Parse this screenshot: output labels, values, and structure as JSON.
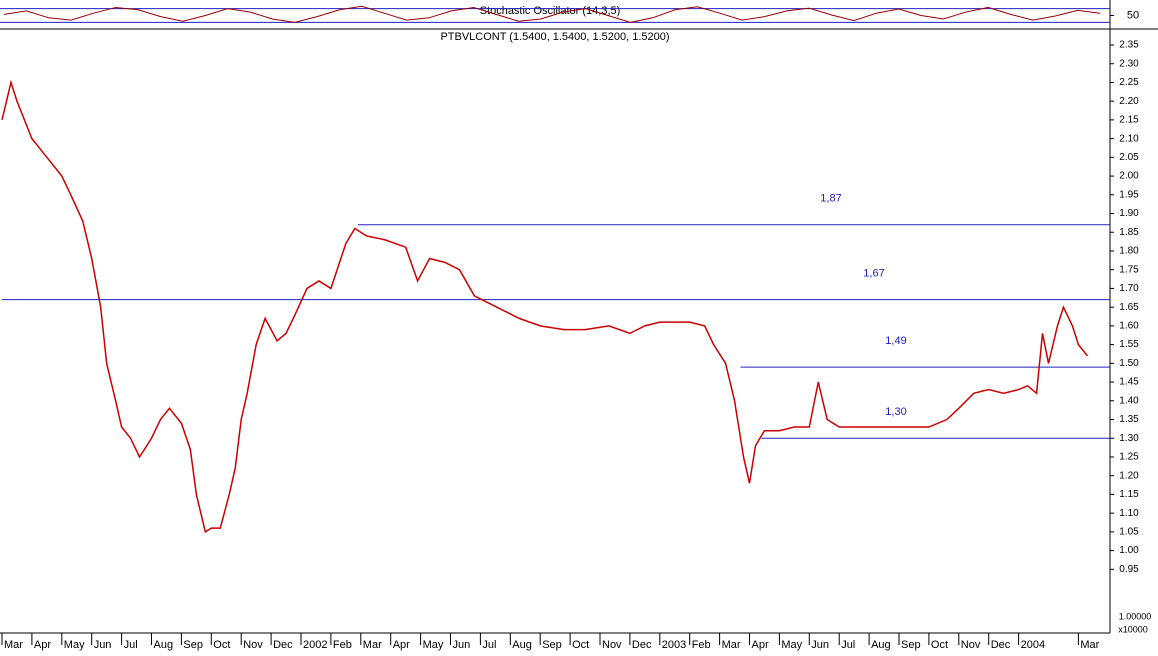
{
  "chart_data": [
    {
      "type": "line",
      "title": "Stochastic Oscillator (14,3,5)",
      "ylim": [
        0,
        100
      ],
      "yticks": [
        50
      ],
      "levels": [
        80,
        20
      ],
      "series": [
        {
          "name": "Stochastic",
          "color": "#990000",
          "values": [
            55,
            70,
            40,
            30,
            60,
            85,
            75,
            45,
            25,
            50,
            80,
            65,
            35,
            20,
            45,
            75,
            90,
            60,
            30,
            40,
            70,
            85,
            55,
            25,
            35,
            65,
            80,
            50,
            20,
            40,
            75,
            88,
            60,
            30,
            45,
            70,
            82,
            52,
            28,
            60,
            78,
            50,
            35,
            65,
            85,
            55,
            30,
            48,
            72,
            60
          ]
        }
      ]
    },
    {
      "type": "line",
      "title": "PTBVLCONT (1.5400, 1.5400, 1.5200, 1.5200)",
      "ylim": [
        0.78,
        2.39
      ],
      "yticks": [
        0.95,
        {
          "value": 1.0,
          "label": "1.00"
        },
        1.05,
        {
          "value": 1.1,
          "label": "1.10"
        },
        1.15,
        {
          "value": 1.2,
          "label": "1.20"
        },
        1.25,
        {
          "value": 1.3,
          "label": "1.30"
        },
        1.35,
        {
          "value": 1.4,
          "label": "1.40"
        },
        1.45,
        {
          "value": 1.5,
          "label": "1.50"
        },
        1.55,
        {
          "value": 1.6,
          "label": "1.60"
        },
        1.65,
        {
          "value": 1.7,
          "label": "1.70"
        },
        1.75,
        {
          "value": 1.8,
          "label": "1.80"
        },
        1.85,
        {
          "value": 1.9,
          "label": "1.90"
        },
        1.95,
        {
          "value": 2.0,
          "label": "2.00"
        },
        2.05,
        {
          "value": 2.1,
          "label": "2.10"
        },
        2.15,
        {
          "value": 2.2,
          "label": "2.20"
        },
        2.25,
        {
          "value": 2.3,
          "label": "2.30"
        },
        2.35
      ],
      "xlim": [
        0,
        37
      ],
      "xticks": [
        {
          "value": 0,
          "label": "Mar"
        },
        {
          "value": 1,
          "label": "Apr"
        },
        {
          "value": 2,
          "label": "May"
        },
        {
          "value": 3,
          "label": "Jun"
        },
        {
          "value": 4,
          "label": "Jul"
        },
        {
          "value": 5,
          "label": "Aug"
        },
        {
          "value": 6,
          "label": "Sep"
        },
        {
          "value": 7,
          "label": "Oct"
        },
        {
          "value": 8,
          "label": "Nov"
        },
        {
          "value": 9,
          "label": "Dec"
        },
        {
          "value": 10,
          "label": "2002"
        },
        {
          "value": 11,
          "label": "Feb"
        },
        {
          "value": 12,
          "label": "Mar"
        },
        {
          "value": 13,
          "label": "Apr"
        },
        {
          "value": 14,
          "label": "May"
        },
        {
          "value": 15,
          "label": "Jun"
        },
        {
          "value": 16,
          "label": "Jul"
        },
        {
          "value": 17,
          "label": "Aug"
        },
        {
          "value": 18,
          "label": "Sep"
        },
        {
          "value": 19,
          "label": "Oct"
        },
        {
          "value": 20,
          "label": "Nov"
        },
        {
          "value": 21,
          "label": "Dec"
        },
        {
          "value": 22,
          "label": "2003"
        },
        {
          "value": 23,
          "label": "Feb"
        },
        {
          "value": 24,
          "label": "Mar"
        },
        {
          "value": 25,
          "label": "Apr"
        },
        {
          "value": 26,
          "label": "May"
        },
        {
          "value": 27,
          "label": "Jun"
        },
        {
          "value": 28,
          "label": "Jul"
        },
        {
          "value": 29,
          "label": "Aug"
        },
        {
          "value": 30,
          "label": "Sep"
        },
        {
          "value": 31,
          "label": "Oct"
        },
        {
          "value": 32,
          "label": "Nov"
        },
        {
          "value": 33,
          "label": "Dec"
        },
        {
          "value": 34,
          "label": "2004"
        },
        {
          "value": 36,
          "label": "Mar"
        }
      ],
      "scale_label": "1.00000",
      "multiplier_label": "x10000",
      "levels": [
        {
          "value": 1.87,
          "label": "1,87",
          "x_start": 11.9
        },
        {
          "value": 1.67,
          "label": "1,67",
          "x_start": 0
        },
        {
          "value": 1.49,
          "label": "1,49",
          "x_start": 24.7
        },
        {
          "value": 1.3,
          "label": "1,30",
          "x_start": 25.4
        }
      ],
      "series": [
        {
          "name": "PTBVLCONT",
          "color": "#cc0000",
          "x": [
            0,
            0.3,
            0.5,
            1,
            1.5,
            2,
            2.3,
            2.7,
            3,
            3.3,
            3.5,
            3.8,
            4,
            4.3,
            4.6,
            5,
            5.3,
            5.6,
            6,
            6.3,
            6.5,
            6.8,
            7,
            7.3,
            7.6,
            7.8,
            8,
            8.2,
            8.5,
            8.8,
            9.2,
            9.5,
            9.8,
            10.2,
            10.6,
            11,
            11.5,
            11.8,
            12.2,
            12.8,
            13.5,
            13.9,
            14.3,
            14.8,
            15.3,
            15.8,
            16.3,
            16.8,
            17.3,
            18,
            18.8,
            19.5,
            20.3,
            21,
            21.5,
            22,
            23,
            23.5,
            23.8,
            24.2,
            24.5,
            24.8,
            25,
            25.2,
            25.5,
            26,
            26.5,
            27,
            27.3,
            27.6,
            28,
            29,
            30,
            31,
            31.6,
            32,
            32.5,
            33,
            33.5,
            34,
            34.3,
            34.6,
            34.8,
            35,
            35.3,
            35.5,
            35.8,
            36,
            36.3
          ],
          "values": [
            2.15,
            2.25,
            2.2,
            2.1,
            2.05,
            2.0,
            1.95,
            1.88,
            1.78,
            1.65,
            1.5,
            1.4,
            1.33,
            1.3,
            1.25,
            1.3,
            1.35,
            1.38,
            1.34,
            1.27,
            1.15,
            1.05,
            1.06,
            1.06,
            1.15,
            1.22,
            1.35,
            1.42,
            1.55,
            1.62,
            1.56,
            1.58,
            1.63,
            1.7,
            1.72,
            1.7,
            1.82,
            1.86,
            1.84,
            1.83,
            1.81,
            1.72,
            1.78,
            1.77,
            1.75,
            1.68,
            1.66,
            1.64,
            1.62,
            1.6,
            1.59,
            1.59,
            1.6,
            1.58,
            1.6,
            1.61,
            1.61,
            1.6,
            1.55,
            1.5,
            1.4,
            1.25,
            1.18,
            1.28,
            1.32,
            1.32,
            1.33,
            1.33,
            1.45,
            1.35,
            1.33,
            1.33,
            1.33,
            1.33,
            1.35,
            1.38,
            1.42,
            1.43,
            1.42,
            1.43,
            1.44,
            1.42,
            1.58,
            1.5,
            1.6,
            1.65,
            1.6,
            1.55,
            1.52
          ]
        }
      ]
    }
  ]
}
